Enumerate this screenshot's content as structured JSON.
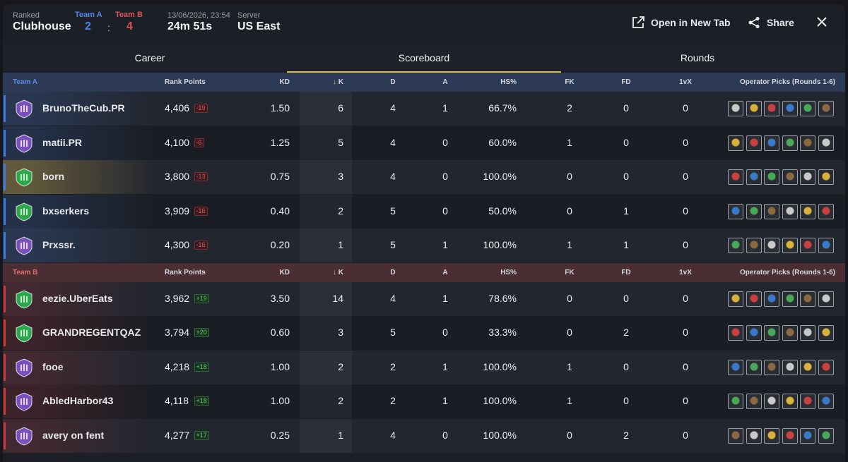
{
  "header": {
    "mode_label": "Ranked",
    "mode": "Clubhouse",
    "team_a": {
      "label": "Team A",
      "score": "2"
    },
    "separator": ":",
    "team_b": {
      "label": "Team B",
      "score": "4"
    },
    "date": "13/06/2026, 23:54",
    "duration": "24m 51s",
    "server_label": "Server",
    "server": "US East",
    "actions": [
      "Open in New Tab",
      "Share"
    ]
  },
  "tabs": {
    "items": [
      "Career",
      "Scoreboard",
      "Rounds"
    ],
    "active": 1
  },
  "teams": [
    {
      "name": "Team A",
      "columns": [
        "Rank Points",
        "KD",
        "K",
        "D",
        "A",
        "HS%",
        "FK",
        "FD",
        "1vX",
        "Operator Picks (Rounds 1-6)"
      ],
      "players": [
        {
          "name": "BrunoTheCub.PR",
          "rank_points": "4,406",
          "delta": "-19",
          "stats": [
            "1.50",
            "6",
            "4",
            "1",
            "66.7%",
            "2",
            "0",
            "0"
          ]
        },
        {
          "name": "matii.PR",
          "rank_points": "4,100",
          "delta": "-6",
          "stats": [
            "1.25",
            "5",
            "4",
            "0",
            "60.0%",
            "1",
            "0",
            "0"
          ]
        },
        {
          "name": "born",
          "rank_points": "3,800",
          "delta": "-13",
          "stats": [
            "0.75",
            "3",
            "4",
            "0",
            "100.0%",
            "0",
            "0",
            "0"
          ]
        },
        {
          "name": "bxserkers",
          "rank_points": "3,909",
          "delta": "-16",
          "stats": [
            "0.40",
            "2",
            "5",
            "0",
            "50.0%",
            "0",
            "1",
            "0"
          ]
        },
        {
          "name": "Prxssr.",
          "rank_points": "4,300",
          "delta": "-16",
          "stats": [
            "0.20",
            "1",
            "5",
            "1",
            "100.0%",
            "1",
            "1",
            "0"
          ]
        }
      ]
    },
    {
      "name": "Team B",
      "columns": [
        "Rank Points",
        "KD",
        "K",
        "D",
        "A",
        "HS%",
        "FK",
        "FD",
        "1vX",
        "Operator Picks (Rounds 1-6)"
      ],
      "players": [
        {
          "name": "eezie.UberEats",
          "rank_points": "3,962",
          "delta": "+19",
          "stats": [
            "3.50",
            "14",
            "4",
            "1",
            "78.6%",
            "0",
            "0",
            "0"
          ]
        },
        {
          "name": "GRANDREGENTQAZ",
          "rank_points": "3,794",
          "delta": "+20",
          "stats": [
            "0.60",
            "3",
            "5",
            "0",
            "33.3%",
            "0",
            "2",
            "0"
          ]
        },
        {
          "name": "fooe",
          "rank_points": "4,218",
          "delta": "+18",
          "stats": [
            "1.00",
            "2",
            "2",
            "1",
            "100.0%",
            "1",
            "0",
            "0"
          ]
        },
        {
          "name": "AbledHarbor43",
          "rank_points": "4,118",
          "delta": "+18",
          "stats": [
            "1.00",
            "2",
            "2",
            "1",
            "100.0%",
            "1",
            "0",
            "0"
          ]
        },
        {
          "name": "avery on fent",
          "rank_points": "4,277",
          "delta": "+17",
          "stats": [
            "0.25",
            "1",
            "4",
            "0",
            "100.0%",
            "0",
            "2",
            "0"
          ]
        }
      ]
    }
  ]
}
